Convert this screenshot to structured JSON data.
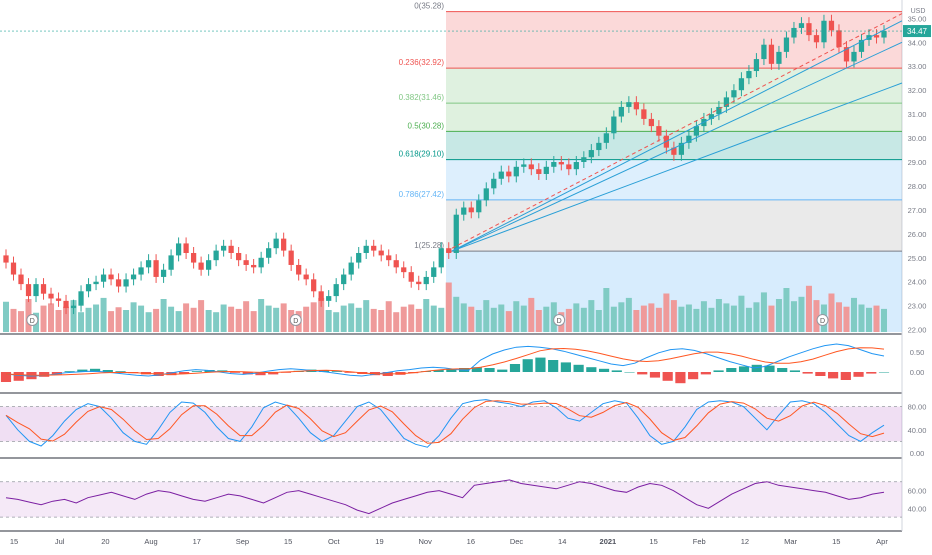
{
  "colors": {
    "up": "#26a69a",
    "down": "#ef5350",
    "vol_up": "#80cbc4",
    "vol_down": "#ef9a9a",
    "macd_line": "#2196f3",
    "signal_line": "#ff5722",
    "rsi_line": "#7b1fa2",
    "stoch_k": "#2196f3",
    "stoch_d": "#ff5722",
    "fib_line_1": "#4caf50",
    "trend_line": "#2a9fd6",
    "price_badge": "#26a69a"
  },
  "price_axis": {
    "unit": "USD",
    "last_price": "34.47",
    "ticks": [
      "35.00",
      "34.00",
      "33.00",
      "32.00",
      "31.00",
      "30.00",
      "29.00",
      "28.00",
      "27.00",
      "26.00",
      "25.00",
      "24.00",
      "23.00",
      "22.00"
    ]
  },
  "macd_axis": {
    "ticks": [
      "0.50",
      "0.00"
    ]
  },
  "stoch_axis": {
    "ticks": [
      "80.00",
      "40.00",
      "0.00"
    ]
  },
  "rsi_axis": {
    "ticks": [
      "60.00",
      "40.00"
    ]
  },
  "fib_labels": [
    "0(35.28)",
    "0.236(32.92)",
    "0.382(31.46)",
    "0.5(30.28)",
    "0.618(29.10)",
    "0.786(27.42)",
    "1(25.28)"
  ],
  "dividend_marker": "D",
  "x_axis": [
    "15",
    "Jul",
    "20",
    "Aug",
    "17",
    "Sep",
    "15",
    "Oct",
    "19",
    "Nov",
    "16",
    "Dec",
    "14",
    "2021",
    "15",
    "Feb",
    "12",
    "Mar",
    "15",
    "Apr"
  ],
  "chart_data": {
    "type": "candlestick",
    "ylim": [
      21.9,
      35.6
    ],
    "fib_levels": [
      35.28,
      32.92,
      31.46,
      30.28,
      29.1,
      27.42,
      25.28
    ],
    "close_series": [
      24.8,
      24.3,
      23.9,
      23.4,
      23.9,
      23.5,
      23.3,
      23.2,
      22.9,
      23.0,
      23.6,
      23.9,
      24.0,
      24.3,
      24.1,
      23.8,
      24.1,
      24.3,
      24.6,
      24.9,
      24.2,
      24.5,
      25.1,
      25.6,
      25.2,
      24.8,
      24.5,
      24.9,
      25.3,
      25.5,
      25.2,
      24.9,
      24.7,
      24.6,
      25.0,
      25.4,
      25.8,
      25.3,
      24.7,
      24.3,
      24.1,
      23.6,
      23.2,
      23.4,
      23.9,
      24.3,
      24.8,
      25.2,
      25.5,
      25.3,
      25.1,
      24.9,
      24.6,
      24.4,
      24.0,
      23.9,
      24.2,
      24.6,
      25.4,
      25.2,
      26.8,
      27.1,
      26.9,
      27.4,
      27.9,
      28.3,
      28.6,
      28.4,
      28.8,
      28.9,
      28.7,
      28.5,
      28.8,
      29.0,
      28.9,
      28.7,
      29.0,
      29.2,
      29.5,
      29.8,
      30.2,
      30.9,
      31.3,
      31.5,
      31.2,
      30.8,
      30.5,
      30.1,
      29.6,
      29.3,
      29.8,
      30.1,
      30.5,
      30.8,
      31.0,
      31.3,
      31.7,
      32.0,
      32.5,
      32.8,
      33.3,
      33.9,
      33.1,
      33.6,
      34.2,
      34.6,
      34.8,
      34.3,
      34.0,
      34.9,
      34.5,
      33.8,
      33.2,
      33.6,
      34.1,
      34.3,
      34.2,
      34.47
    ],
    "volume_pct": [
      55,
      42,
      38,
      60,
      35,
      48,
      52,
      40,
      46,
      58,
      36,
      44,
      50,
      62,
      38,
      45,
      40,
      54,
      48,
      36,
      42,
      60,
      46,
      38,
      52,
      44,
      58,
      40,
      36,
      50,
      46,
      42,
      56,
      38,
      60,
      48,
      44,
      52,
      40,
      38,
      46,
      54,
      62,
      40,
      36,
      48,
      52,
      44,
      58,
      42,
      40,
      56,
      36,
      46,
      50,
      42,
      60,
      48,
      44,
      90,
      64,
      52,
      46,
      40,
      58,
      44,
      50,
      38,
      56,
      48,
      62,
      40,
      46,
      54,
      36,
      42,
      52,
      44,
      58,
      40,
      80,
      46,
      54,
      62,
      40,
      48,
      52,
      44,
      70,
      58,
      46,
      50,
      42,
      56,
      44,
      60,
      52,
      48,
      66,
      44,
      54,
      72,
      48,
      60,
      80,
      56,
      64,
      84,
      58,
      50,
      70,
      54,
      46,
      62,
      50,
      44,
      48,
      42
    ],
    "macd_hist": [
      -0.25,
      -0.22,
      -0.18,
      -0.12,
      -0.06,
      0.02,
      0.06,
      0.08,
      0.05,
      0.02,
      -0.03,
      -0.06,
      -0.1,
      -0.08,
      -0.04,
      0.02,
      0.05,
      0.04,
      -0.02,
      -0.06,
      -0.08,
      -0.06,
      -0.02,
      0.03,
      0.06,
      0.04,
      0.02,
      -0.02,
      -0.05,
      -0.08,
      -0.1,
      -0.07,
      -0.03,
      0.02,
      0.05,
      0.08,
      0.1,
      0.12,
      0.1,
      0.06,
      0.2,
      0.32,
      0.36,
      0.3,
      0.24,
      0.18,
      0.12,
      0.08,
      0.04,
      0.0,
      -0.06,
      -0.14,
      -0.22,
      -0.28,
      -0.18,
      -0.06,
      0.04,
      0.1,
      0.14,
      0.18,
      0.16,
      0.1,
      0.04,
      -0.04,
      -0.1,
      -0.16,
      -0.2,
      -0.12,
      -0.04,
      0.0
    ],
    "macd_line": [
      -0.05,
      -0.08,
      -0.1,
      -0.09,
      -0.06,
      -0.02,
      0.0,
      0.02,
      0.01,
      -0.02,
      -0.05,
      -0.08,
      -0.1,
      -0.07,
      -0.02,
      0.03,
      0.06,
      0.04,
      0.0,
      -0.04,
      -0.06,
      -0.03,
      0.02,
      0.06,
      0.08,
      0.06,
      0.03,
      0.0,
      -0.04,
      -0.08,
      -0.1,
      -0.06,
      -0.02,
      0.03,
      0.06,
      0.1,
      0.12,
      0.1,
      0.06,
      0.04,
      0.3,
      0.45,
      0.55,
      0.62,
      0.64,
      0.62,
      0.58,
      0.52,
      0.44,
      0.36,
      0.28,
      0.2,
      0.16,
      0.22,
      0.36,
      0.48,
      0.56,
      0.58,
      0.54,
      0.46,
      0.36,
      0.26,
      0.18,
      0.1,
      0.14,
      0.26,
      0.38,
      0.48,
      0.58,
      0.66,
      0.7,
      0.66,
      0.56,
      0.46,
      0.4
    ],
    "stoch_k": [
      65,
      40,
      20,
      12,
      30,
      55,
      75,
      85,
      80,
      60,
      35,
      20,
      15,
      40,
      70,
      88,
      86,
      70,
      45,
      25,
      20,
      45,
      78,
      88,
      82,
      60,
      35,
      20,
      30,
      55,
      80,
      88,
      75,
      50,
      25,
      15,
      10,
      30,
      60,
      85,
      90,
      92,
      88,
      85,
      80,
      88,
      90,
      78,
      60,
      55,
      70,
      85,
      90,
      86,
      60,
      30,
      15,
      20,
      45,
      75,
      88,
      90,
      88,
      80,
      60,
      40,
      65,
      88,
      90,
      85,
      70,
      50,
      30,
      20,
      35,
      48
    ],
    "rsi": [
      52,
      50,
      47,
      44,
      48,
      50,
      46,
      52,
      55,
      58,
      54,
      50,
      56,
      60,
      58,
      54,
      50,
      48,
      52,
      56,
      54,
      50,
      46,
      52,
      58,
      60,
      56,
      52,
      48,
      44,
      38,
      34,
      40,
      46,
      50,
      54,
      58,
      60,
      56,
      52,
      66,
      68,
      70,
      72,
      68,
      66,
      64,
      62,
      66,
      70,
      68,
      64,
      60,
      58,
      64,
      68,
      66,
      60,
      52,
      44,
      40,
      48,
      56,
      62,
      68,
      70,
      66,
      64,
      62,
      60,
      58,
      54,
      50,
      52,
      56,
      58
    ],
    "dividend_positions": [
      0.03,
      0.33,
      0.63,
      0.93
    ]
  }
}
